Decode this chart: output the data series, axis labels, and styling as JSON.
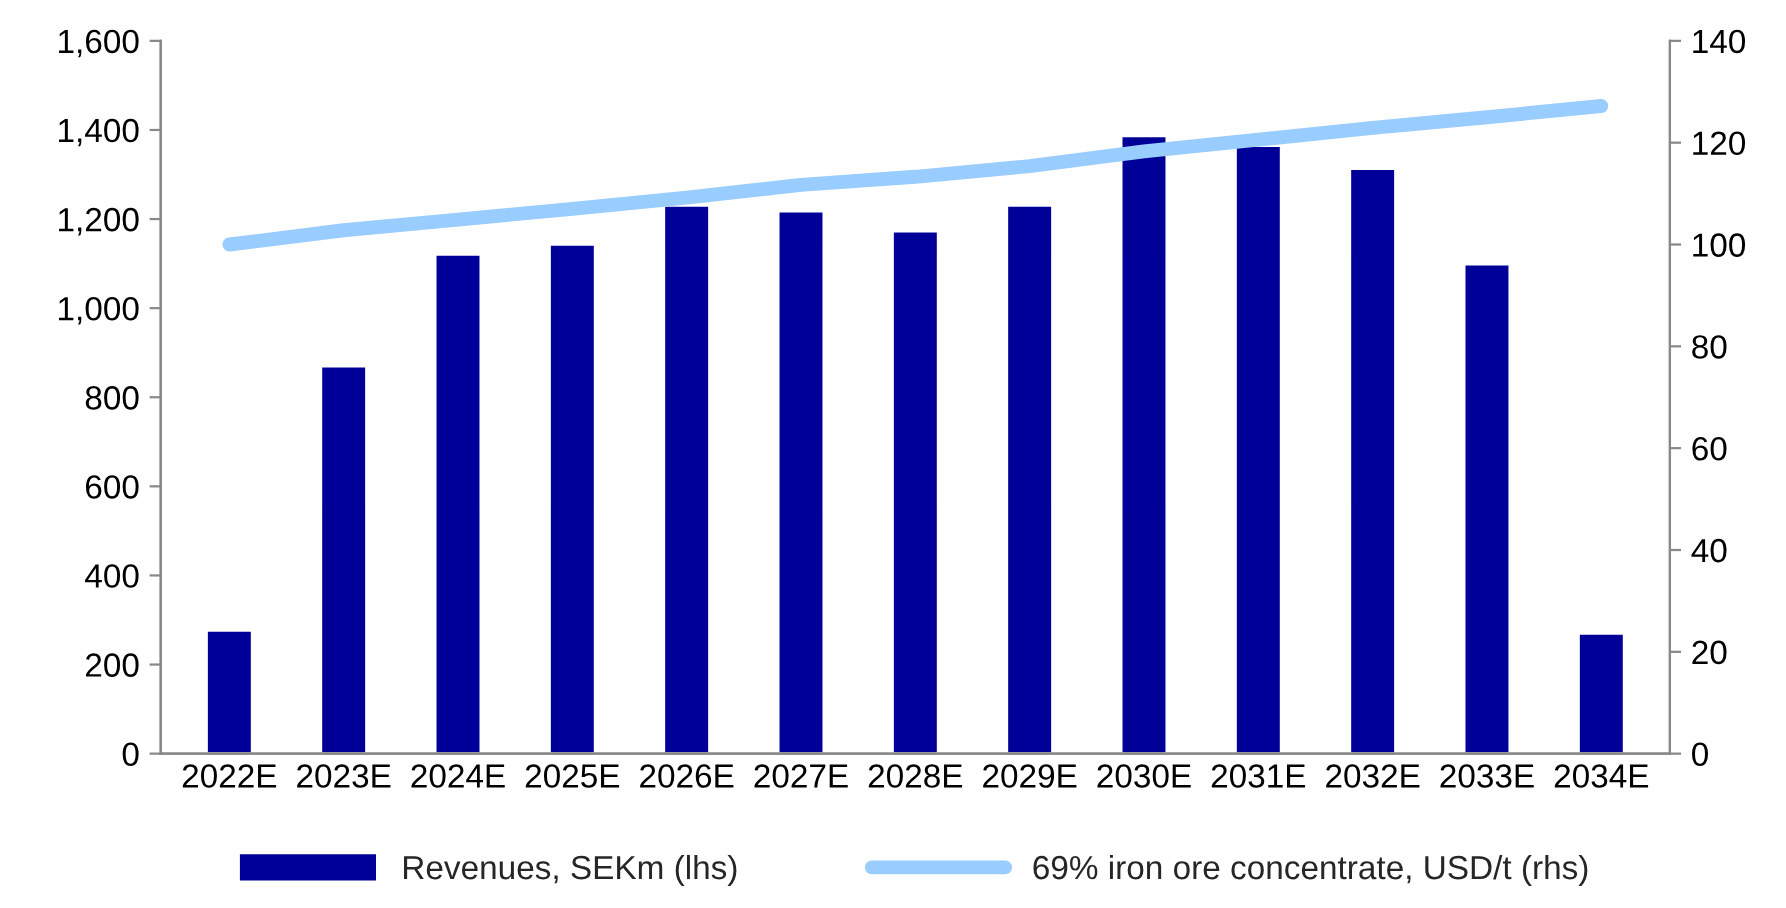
{
  "chart_data": {
    "type": "bar",
    "categories": [
      "2022E",
      "2023E",
      "2024E",
      "2025E",
      "2026E",
      "2027E",
      "2028E",
      "2029E",
      "2030E",
      "2031E",
      "2032E",
      "2033E",
      "2034E"
    ],
    "series": [
      {
        "name": "Revenues, SEKm (lhs)",
        "color": "#000099",
        "values": [
          277,
          870,
          1121,
          1143,
          1231,
          1218,
          1173,
          1231,
          1387,
          1365,
          1313,
          1099,
          270
        ]
      },
      {
        "name": "69% iron ore concentrate, USD/t (rhs)",
        "type": "line",
        "axis": "y2",
        "color": "#99ccff",
        "values": [
          100,
          102.8,
          104.9,
          107,
          109.2,
          111.7,
          113.3,
          115.4,
          118.3,
          120.6,
          122.9,
          125,
          127.2
        ]
      }
    ],
    "ylim": [
      0,
      1600
    ],
    "yticks": [
      0,
      {
        "value": 200,
        "label": "200"
      },
      {
        "value": 400,
        "label": "400"
      },
      {
        "value": 600,
        "label": "600"
      },
      {
        "value": 800,
        "label": "800"
      },
      {
        "value": 1000,
        "label": "1,000"
      },
      {
        "value": 1200,
        "label": "1,200"
      },
      {
        "value": 1400,
        "label": "1,400"
      },
      {
        "value": 1600,
        "label": "1,600"
      }
    ],
    "y2lim": [
      0,
      140
    ],
    "y2ticks": [
      0,
      20,
      40,
      60,
      80,
      100,
      120,
      140
    ],
    "grid": false,
    "legend": "bottom",
    "marker": "none",
    "line_style": "solid"
  }
}
